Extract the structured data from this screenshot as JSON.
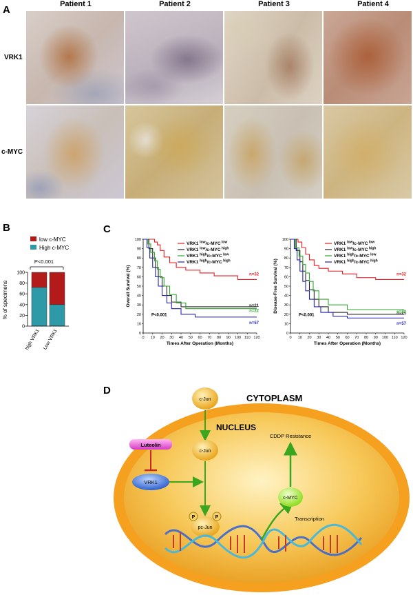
{
  "panel_a": {
    "letter": "A",
    "columns": [
      "Patient 1",
      "Patient 2",
      "Patient 3",
      "Patient 4"
    ],
    "rows": [
      "VRK1",
      "c-MYC"
    ]
  },
  "panel_b": {
    "letter": "B",
    "legend": [
      {
        "label": "low c-MYC",
        "color": "#b31b1b"
      },
      {
        "label": "High c-MYC",
        "color": "#2e9aa8"
      }
    ],
    "pvalue": "P<0.001",
    "chart_data": {
      "type": "bar",
      "stacked": true,
      "categories": [
        "high VRK1",
        "Low VRK1"
      ],
      "series": [
        {
          "name": "High c-MYC",
          "values": [
            72,
            40
          ]
        },
        {
          "name": "low c-MYC",
          "values": [
            28,
            60
          ]
        }
      ],
      "ylabel": "% of specimens",
      "ylim": [
        0,
        100
      ],
      "yticks": [
        0,
        20,
        40,
        60,
        80,
        100
      ]
    }
  },
  "panel_c": {
    "letter": "C",
    "legend": [
      {
        "label": "VRK1",
        "sup1": "low",
        "mid": "/c-MYC",
        "sup2": "low",
        "color": "#e8191f"
      },
      {
        "label": "VRK1",
        "sup1": "low",
        "mid": "/c-MYC",
        "sup2": "high",
        "color": "#222222"
      },
      {
        "label": "VRK1",
        "sup1": "high",
        "mid": "/c-MYC",
        "sup2": "low",
        "color": "#2ea82e"
      },
      {
        "label": "VRK1",
        "sup1": "high",
        "mid": "/c-MYC",
        "sup2": "high",
        "color": "#2222bb"
      }
    ],
    "chart_data": [
      {
        "type": "line",
        "ylabel": "Overall Survival (%)",
        "xlabel": "Times After Operation (Months)",
        "xlim": [
          0,
          120
        ],
        "ylim": [
          0,
          100
        ],
        "xticks": [
          0,
          10,
          20,
          30,
          40,
          50,
          60,
          70,
          80,
          90,
          100,
          110,
          120
        ],
        "yticks": [
          0,
          10,
          20,
          30,
          40,
          50,
          60,
          70,
          80,
          90,
          100
        ],
        "pvalue": "P<0.001",
        "series": [
          {
            "color": "#e8191f",
            "n_label": "n=32",
            "x": [
              0,
              10,
              12,
              15,
              18,
              22,
              28,
              35,
              45,
              60,
              75,
              100,
              120
            ],
            "y": [
              100,
              100,
              97,
              94,
              88,
              81,
              75,
              70,
              67,
              64,
              61,
              57,
              57
            ]
          },
          {
            "color": "#222222",
            "n_label": "n=21",
            "x": [
              0,
              6,
              10,
              13,
              16,
              20,
              25,
              30,
              40,
              55,
              120
            ],
            "y": [
              100,
              90,
              80,
              70,
              60,
              50,
              40,
              33,
              28,
              28,
              28
            ]
          },
          {
            "color": "#2ea82e",
            "n_label": "n=22",
            "x": [
              0,
              5,
              8,
              12,
              15,
              18,
              22,
              28,
              35,
              45,
              120
            ],
            "y": [
              100,
              95,
              86,
              77,
              68,
              59,
              50,
              41,
              32,
              26,
              26
            ]
          },
          {
            "color": "#2222bb",
            "n_label": "n=57",
            "x": [
              0,
              4,
              7,
              10,
              13,
              16,
              20,
              25,
              30,
              40,
              55,
              120
            ],
            "y": [
              100,
              91,
              80,
              70,
              60,
              50,
              40,
              32,
              26,
              20,
              17,
              17
            ]
          }
        ]
      },
      {
        "type": "line",
        "ylabel": "Disease-Free Survival (%)",
        "xlabel": "Times After Operation (Months)",
        "xlim": [
          0,
          120
        ],
        "ylim": [
          0,
          100
        ],
        "xticks": [
          0,
          10,
          20,
          30,
          40,
          50,
          60,
          70,
          80,
          90,
          100,
          110,
          120
        ],
        "yticks": [
          0,
          10,
          20,
          30,
          40,
          50,
          60,
          70,
          80,
          90,
          100
        ],
        "pvalue": "P<0.001",
        "series": [
          {
            "color": "#e8191f",
            "n_label": "n=32",
            "x": [
              0,
              8,
              12,
              16,
              20,
              25,
              30,
              40,
              55,
              70,
              90,
              120
            ],
            "y": [
              100,
              97,
              91,
              84,
              78,
              72,
              69,
              66,
              63,
              59,
              57,
              57
            ]
          },
          {
            "color": "#222222",
            "n_label": "n=21",
            "x": [
              0,
              6,
              10,
              13,
              16,
              20,
              25,
              30,
              40,
              60,
              120
            ],
            "y": [
              100,
              88,
              76,
              66,
              56,
              46,
              36,
              28,
              22,
              20,
              20
            ]
          },
          {
            "color": "#2ea82e",
            "n_label": "n=22",
            "x": [
              0,
              5,
              9,
              13,
              16,
              20,
              24,
              30,
              40,
              60,
              120
            ],
            "y": [
              100,
              91,
              82,
              73,
              64,
              55,
              45,
              36,
              30,
              25,
              25
            ]
          },
          {
            "color": "#2222bb",
            "n_label": "n=57",
            "x": [
              0,
              4,
              7,
              10,
              13,
              16,
              20,
              25,
              32,
              45,
              60,
              120
            ],
            "y": [
              100,
              90,
              78,
              66,
              55,
              45,
              36,
              28,
              22,
              18,
              16,
              16
            ]
          }
        ]
      }
    ]
  },
  "panel_d": {
    "letter": "D",
    "cytoplasm": "CYTOPLASM",
    "nucleus": "NUCLEUS",
    "cjun_out": "c-Jun",
    "cjun_in": "c-Jun",
    "luteolin": "Luteolin",
    "vrk1": "VRK1",
    "pcjun": "pc-Jun",
    "p_left": "P",
    "p_right": "P",
    "cmyc": "c-MYC",
    "cddp": "CDDP Resistance",
    "transcription": "Transcription"
  }
}
